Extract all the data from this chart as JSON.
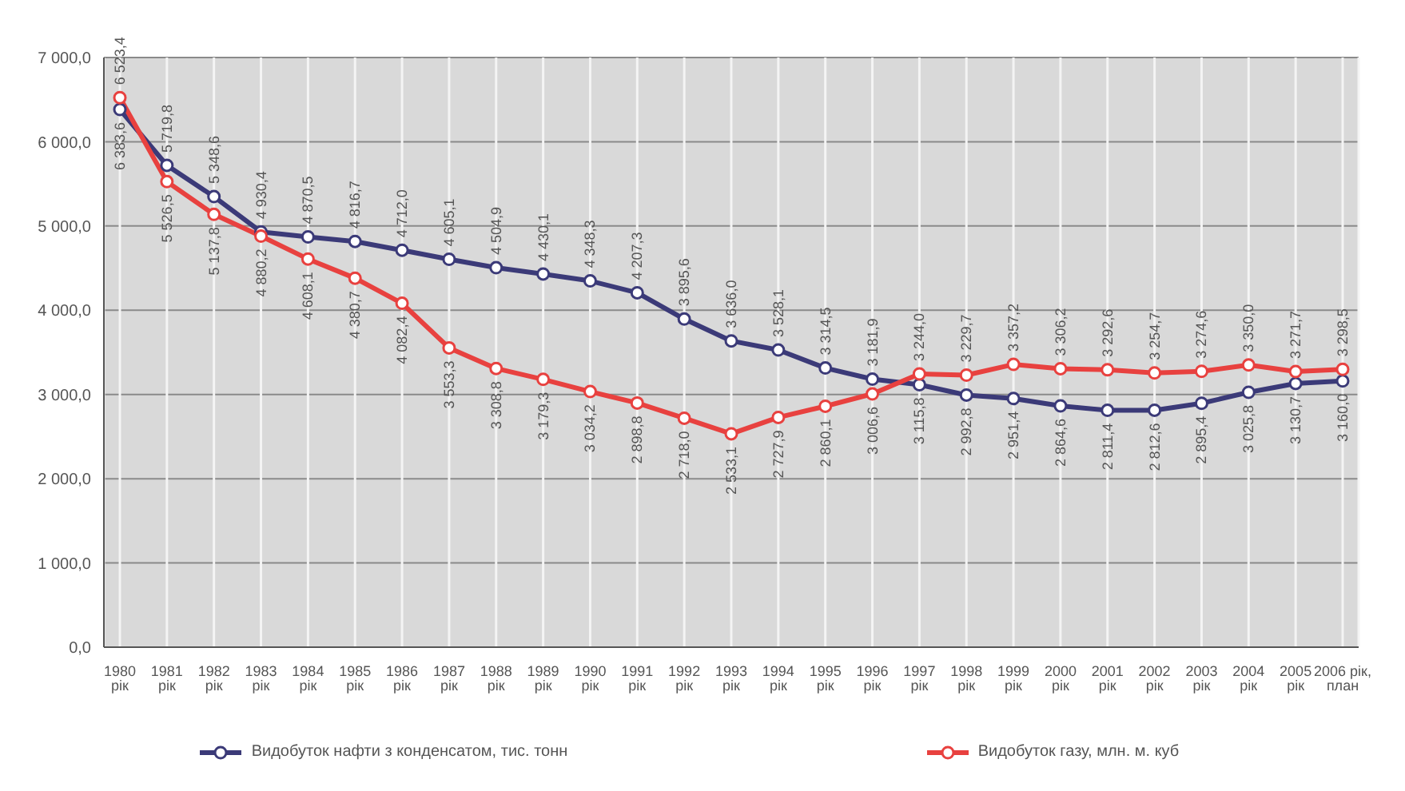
{
  "chart_data": {
    "type": "line",
    "categories": [
      "1980\nрік",
      "1981\nрік",
      "1982\nрік",
      "1983\nрік",
      "1984\nрік",
      "1985\nрік",
      "1986\nрік",
      "1987\nрік",
      "1988\nрік",
      "1989\nрік",
      "1990\nрік",
      "1991\nрік",
      "1992\nрік",
      "1993\nрік",
      "1994\nрік",
      "1995\nрік",
      "1996\nрік",
      "1997\nрік",
      "1998\nрік",
      "1999\nрік",
      "2000\nрік",
      "2001\nрік",
      "2002\nрік",
      "2003\nрік",
      "2004\nрік",
      "2005\nрік",
      "2006 рік,\nплан"
    ],
    "series": [
      {
        "name": "Видобуток нафти з конденсатом, тис. тонн",
        "color": "#3b3a78",
        "values": [
          6383.6,
          5719.8,
          5348.6,
          4930.4,
          4870.5,
          4816.7,
          4712.0,
          4605.1,
          4504.9,
          4430.1,
          4348.3,
          4207.3,
          3895.6,
          3636.0,
          3528.1,
          3314.5,
          3181.9,
          3115.8,
          2992.8,
          2951.4,
          2864.6,
          2811.4,
          2812.6,
          2895.4,
          3025.8,
          3130.7,
          3160.0
        ],
        "value_labels": [
          "6 383,6",
          "5 719,8",
          "5 348,6",
          "4 930,4",
          "4 870,5",
          "4 816,7",
          "4 712,0",
          "4 605,1",
          "4 504,9",
          "4 430,1",
          "4 348,3",
          "4 207,3",
          "3 895,6",
          "3 636,0",
          "3 528,1",
          "3 314,5",
          "3 181,9",
          "3 115,8",
          "2 992,8",
          "2 951,4",
          "2 864,6",
          "2 811,4",
          "2 812,6",
          "2 895,4",
          "3 025,8",
          "3 130,7",
          "3 160,0"
        ]
      },
      {
        "name": "Видобуток газу, млн. м. куб",
        "color": "#e8413f",
        "values": [
          6523.4,
          5526.5,
          5137.8,
          4880.2,
          4608.1,
          4380.7,
          4082.4,
          3553.3,
          3308.8,
          3179.3,
          3034.2,
          2898.8,
          2718.0,
          2533.1,
          2727.9,
          2860.1,
          3006.6,
          3244.0,
          3229.7,
          3357.2,
          3306.2,
          3292.6,
          3254.7,
          3274.6,
          3350.0,
          3271.7,
          3298.5
        ],
        "value_labels": [
          "6 523,4",
          "5 526,5",
          "5 137,8",
          "4 880,2",
          "4 608,1",
          "4 380,7",
          "4 082,4",
          "3 553,3",
          "3 308,8",
          "3 179,3",
          "3 034,2",
          "2 898,8",
          "2 718,0",
          "2 533,1",
          "2 727,9",
          "2 860,1",
          "3 006,6",
          "3 244,0",
          "3 229,7",
          "3 357,2",
          "3 306,2",
          "3 292,6",
          "3 254,7",
          "3 274,6",
          "3 350,0",
          "3 271,7",
          "3 298,5"
        ]
      }
    ],
    "ylim": [
      0,
      7000
    ],
    "yticks": [
      {
        "value": 0,
        "label": "0,0"
      },
      {
        "value": 1000,
        "label": "1 000,0"
      },
      {
        "value": 2000,
        "label": "2 000,0"
      },
      {
        "value": 3000,
        "label": "3 000,0"
      },
      {
        "value": 4000,
        "label": "4 000,0"
      },
      {
        "value": 5000,
        "label": "5 000,0"
      },
      {
        "value": 6000,
        "label": "6 000,0"
      },
      {
        "value": 7000,
        "label": "7 000,0"
      }
    ],
    "grid": true,
    "legend": "bottom",
    "marker": "circle",
    "line_style": "solid"
  }
}
